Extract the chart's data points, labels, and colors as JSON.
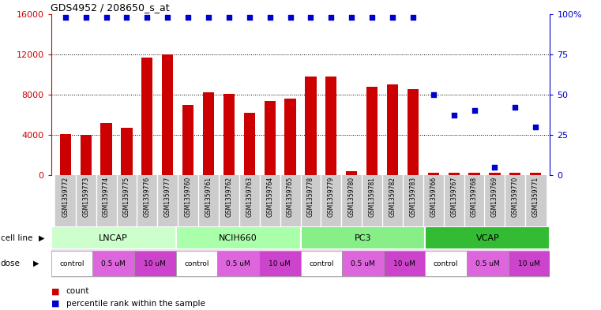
{
  "title": "GDS4952 / 208650_s_at",
  "samples": [
    "GSM1359772",
    "GSM1359773",
    "GSM1359774",
    "GSM1359775",
    "GSM1359776",
    "GSM1359777",
    "GSM1359760",
    "GSM1359761",
    "GSM1359762",
    "GSM1359763",
    "GSM1359764",
    "GSM1359765",
    "GSM1359778",
    "GSM1359779",
    "GSM1359780",
    "GSM1359781",
    "GSM1359782",
    "GSM1359783",
    "GSM1359766",
    "GSM1359767",
    "GSM1359768",
    "GSM1359769",
    "GSM1359770",
    "GSM1359771"
  ],
  "counts": [
    4100,
    4000,
    5200,
    4700,
    11700,
    12000,
    7000,
    8200,
    8100,
    6200,
    7400,
    7600,
    9800,
    9800,
    400,
    8800,
    9000,
    8500,
    200,
    200,
    200,
    200,
    200,
    200
  ],
  "percentile_ranks": [
    98,
    98,
    98,
    98,
    98,
    98,
    98,
    98,
    98,
    98,
    98,
    98,
    98,
    98,
    98,
    98,
    98,
    98,
    50,
    37,
    40,
    5,
    42,
    30
  ],
  "bar_color": "#cc0000",
  "dot_color": "#0000cc",
  "cell_lines": [
    {
      "label": "LNCAP",
      "start": 0,
      "end": 6,
      "color": "#ccffcc"
    },
    {
      "label": "NCIH660",
      "start": 6,
      "end": 12,
      "color": "#aaffaa"
    },
    {
      "label": "PC3",
      "start": 12,
      "end": 18,
      "color": "#88ee88"
    },
    {
      "label": "VCAP",
      "start": 18,
      "end": 24,
      "color": "#44cc44"
    }
  ],
  "dose_groups": [
    {
      "label": "control",
      "start": 0,
      "end": 2,
      "color": "#ffffff"
    },
    {
      "label": "0.5 uM",
      "start": 2,
      "end": 4,
      "color": "#dd66dd"
    },
    {
      "label": "10 uM",
      "start": 4,
      "end": 6,
      "color": "#cc44cc"
    },
    {
      "label": "control",
      "start": 6,
      "end": 8,
      "color": "#ffffff"
    },
    {
      "label": "0.5 uM",
      "start": 8,
      "end": 10,
      "color": "#dd66dd"
    },
    {
      "label": "10 uM",
      "start": 10,
      "end": 12,
      "color": "#cc44cc"
    },
    {
      "label": "control",
      "start": 12,
      "end": 14,
      "color": "#ffffff"
    },
    {
      "label": "0.5 uM",
      "start": 14,
      "end": 16,
      "color": "#dd66dd"
    },
    {
      "label": "10 uM",
      "start": 16,
      "end": 18,
      "color": "#cc44cc"
    },
    {
      "label": "control",
      "start": 18,
      "end": 20,
      "color": "#ffffff"
    },
    {
      "label": "0.5 uM",
      "start": 20,
      "end": 22,
      "color": "#dd66dd"
    },
    {
      "label": "10 uM",
      "start": 22,
      "end": 24,
      "color": "#cc44cc"
    }
  ],
  "ylim_left": [
    0,
    16000
  ],
  "ylim_right": [
    0,
    100
  ],
  "yticks_left": [
    0,
    4000,
    8000,
    12000,
    16000
  ],
  "yticks_right": [
    0,
    25,
    50,
    75,
    100
  ],
  "ylabel_left_color": "#cc0000",
  "ylabel_right_color": "#0000cc",
  "fig_bg": "#ffffff",
  "grid_lines": [
    4000,
    8000,
    12000
  ],
  "xticklabel_bg": "#cccccc"
}
